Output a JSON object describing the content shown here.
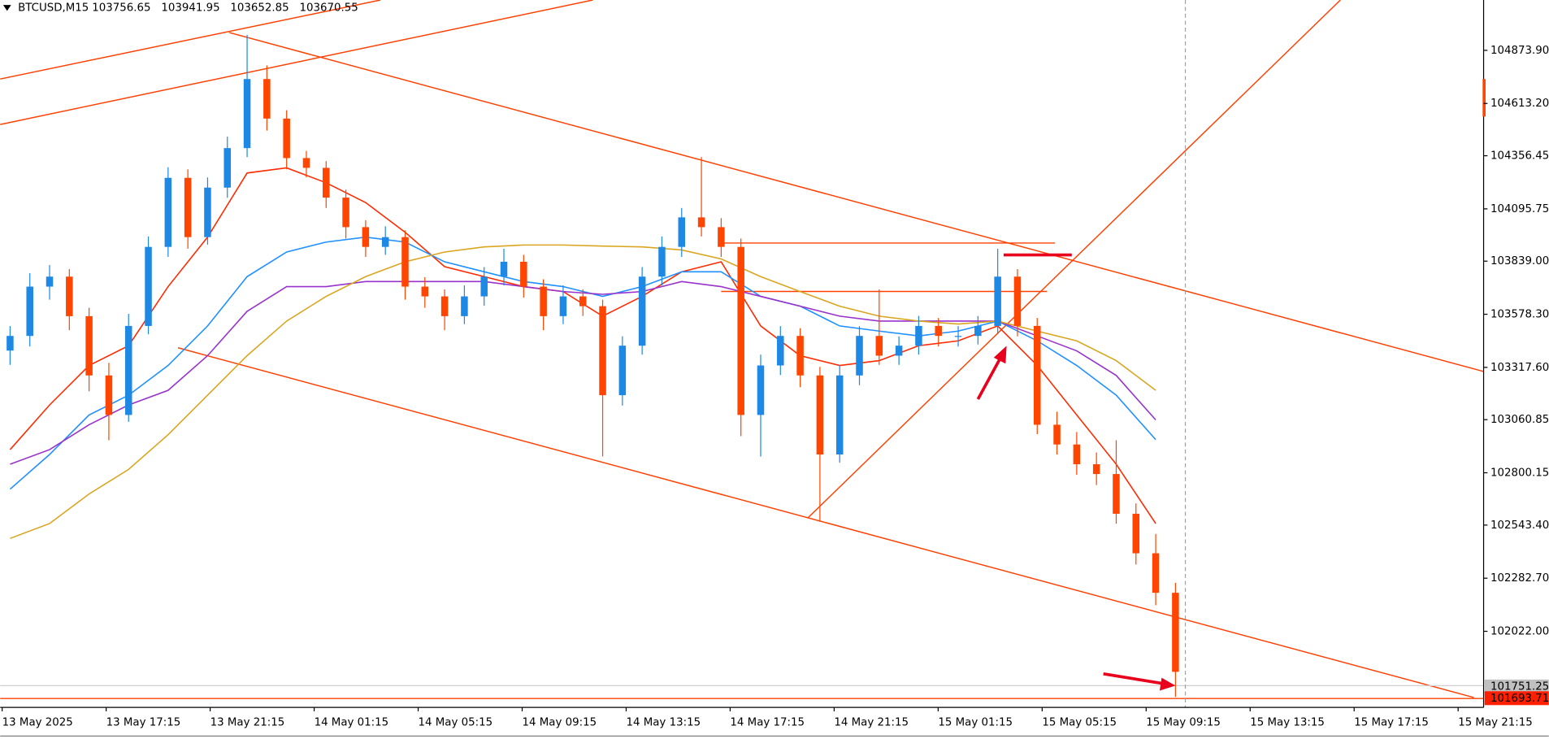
{
  "chart_data": {
    "type": "candlestick",
    "symbol": "BTCUSD,M15",
    "quote": [
      103756.65,
      103941.95,
      103652.85,
      103670.55
    ],
    "ylim": [
      101680,
      105121
    ],
    "yticks": [
      {
        "value": 104873.9,
        "label": "104873.90"
      },
      {
        "value": 104613.2,
        "label": "104613.20"
      },
      {
        "value": 104356.45,
        "label": "104356.45"
      },
      {
        "value": 104095.75,
        "label": "104095.75"
      },
      {
        "value": 103839.0,
        "label": "103839.00"
      },
      {
        "value": 103578.3,
        "label": "103578.30"
      },
      {
        "value": 103317.6,
        "label": "103317.60"
      },
      {
        "value": 103060.85,
        "label": "103060.85"
      },
      {
        "value": 102800.15,
        "label": "102800.15"
      },
      {
        "value": 102543.4,
        "label": "102543.40"
      },
      {
        "value": 102282.7,
        "label": "102282.70"
      },
      {
        "value": 102022.0,
        "label": "102022.00"
      }
    ],
    "x_labels": [
      "13 May 2025",
      "13 May 17:15",
      "13 May 21:15",
      "14 May 01:15",
      "14 May 05:15",
      "14 May 09:15",
      "14 May 13:15",
      "14 May 17:15",
      "14 May 21:15",
      "15 May 01:15",
      "15 May 05:15",
      "15 May 09:15",
      "15 May 13:15",
      "15 May 17:15",
      "15 May 21:15"
    ],
    "price_labels": [
      {
        "value": 101751.25,
        "label": "101751.25",
        "color": "#c0c0c0"
      },
      {
        "value": 101693.71,
        "label": "101693.71",
        "color": "#ff2000"
      }
    ],
    "up_color": "#1e88e5",
    "down_color": "#ff4500",
    "ohlc": [
      [
        103400,
        103520,
        103330,
        103472
      ],
      [
        103472,
        103780,
        103420,
        103714
      ],
      [
        103714,
        103820,
        103650,
        103763
      ],
      [
        103763,
        103800,
        103500,
        103569
      ],
      [
        103569,
        103610,
        103200,
        103278
      ],
      [
        103278,
        103340,
        102960,
        103084
      ],
      [
        103084,
        103580,
        103050,
        103521
      ],
      [
        103521,
        103960,
        103480,
        103909
      ],
      [
        103909,
        104300,
        103860,
        104248
      ],
      [
        104248,
        104290,
        103900,
        103957
      ],
      [
        103957,
        104250,
        103920,
        104200
      ],
      [
        104200,
        104450,
        104150,
        104394
      ],
      [
        104394,
        104950,
        104350,
        104733
      ],
      [
        104733,
        104800,
        104480,
        104539
      ],
      [
        104539,
        104580,
        104290,
        104345
      ],
      [
        104345,
        104380,
        104250,
        104297
      ],
      [
        104297,
        104330,
        104100,
        104151
      ],
      [
        104151,
        104190,
        103950,
        104006
      ],
      [
        104006,
        104040,
        103860,
        103909
      ],
      [
        103909,
        104010,
        103870,
        103957
      ],
      [
        103957,
        103990,
        103650,
        103714
      ],
      [
        103714,
        103760,
        103610,
        103666
      ],
      [
        103666,
        103700,
        103500,
        103569
      ],
      [
        103569,
        103720,
        103530,
        103666
      ],
      [
        103666,
        103810,
        103620,
        103763
      ],
      [
        103763,
        103900,
        103720,
        103836
      ],
      [
        103836,
        103870,
        103660,
        103714
      ],
      [
        103714,
        103750,
        103500,
        103569
      ],
      [
        103569,
        103720,
        103530,
        103666
      ],
      [
        103666,
        103700,
        103570,
        103618
      ],
      [
        103618,
        103650,
        102880,
        103181
      ],
      [
        103181,
        103470,
        103130,
        103424
      ],
      [
        103424,
        103810,
        103380,
        103763
      ],
      [
        103763,
        103960,
        103720,
        103909
      ],
      [
        103909,
        104100,
        103860,
        104054
      ],
      [
        104054,
        104350,
        103960,
        104006
      ],
      [
        104006,
        104050,
        103860,
        103909
      ],
      [
        103909,
        103950,
        102980,
        103084
      ],
      [
        103084,
        103380,
        102880,
        103327
      ],
      [
        103327,
        103520,
        103280,
        103472
      ],
      [
        103472,
        103510,
        103220,
        103278
      ],
      [
        103278,
        103320,
        102560,
        102890
      ],
      [
        102890,
        103330,
        102850,
        103278
      ],
      [
        103278,
        103520,
        103230,
        103472
      ],
      [
        103472,
        103700,
        103330,
        103375
      ],
      [
        103375,
        103470,
        103330,
        103424
      ],
      [
        103424,
        103570,
        103380,
        103521
      ],
      [
        103521,
        103560,
        103420,
        103472
      ],
      [
        103472,
        103520,
        103420,
        103472
      ],
      [
        103472,
        103570,
        103430,
        103521
      ],
      [
        103521,
        103900,
        103480,
        103763
      ],
      [
        103763,
        103800,
        103470,
        103521
      ],
      [
        103521,
        103560,
        102990,
        103036
      ],
      [
        103036,
        103100,
        102890,
        102939
      ],
      [
        102939,
        103000,
        102790,
        102842
      ],
      [
        102842,
        102900,
        102740,
        102794
      ],
      [
        102794,
        102960,
        102550,
        102599
      ],
      [
        102599,
        102650,
        102350,
        102405
      ],
      [
        102405,
        102500,
        102150,
        102211
      ],
      [
        102211,
        102260,
        101700,
        101823
      ]
    ],
    "series": [
      {
        "color": "#ff2a00",
        "values": [
          102914,
          103133,
          103327,
          103424,
          103714,
          103957,
          104272,
          104297,
          104224,
          104127,
          103981,
          103812,
          103763,
          103714,
          103690,
          103569,
          103666,
          103787,
          103836,
          103521,
          103375,
          103327,
          103351,
          103424,
          103448,
          103521,
          103327,
          103084,
          102842,
          102551
        ]
      },
      {
        "color": "#1e90ff",
        "values": [
          102720,
          102890,
          103084,
          103181,
          103327,
          103521,
          103763,
          103884,
          103933,
          103957,
          103933,
          103836,
          103787,
          103739,
          103714,
          103666,
          103714,
          103787,
          103787,
          103666,
          103618,
          103521,
          103496,
          103472,
          103496,
          103545,
          103448,
          103327,
          103181,
          102963
        ]
      },
      {
        "color": "#9932cc",
        "values": [
          102842,
          102914,
          103036,
          103133,
          103205,
          103375,
          103593,
          103714,
          103714,
          103739,
          103739,
          103739,
          103739,
          103714,
          103690,
          103676,
          103690,
          103739,
          103714,
          103666,
          103618,
          103569,
          103545,
          103545,
          103545,
          103545,
          103472,
          103399,
          103278,
          103060
        ]
      },
      {
        "color": "#daa520",
        "values": [
          102478,
          102551,
          102696,
          102817,
          102987,
          103181,
          103375,
          103545,
          103666,
          103763,
          103836,
          103884,
          103909,
          103918,
          103918,
          103913,
          103909,
          103894,
          103850,
          103763,
          103690,
          103618,
          103569,
          103545,
          103530,
          103545,
          103496,
          103448,
          103351,
          103205
        ]
      }
    ]
  }
}
